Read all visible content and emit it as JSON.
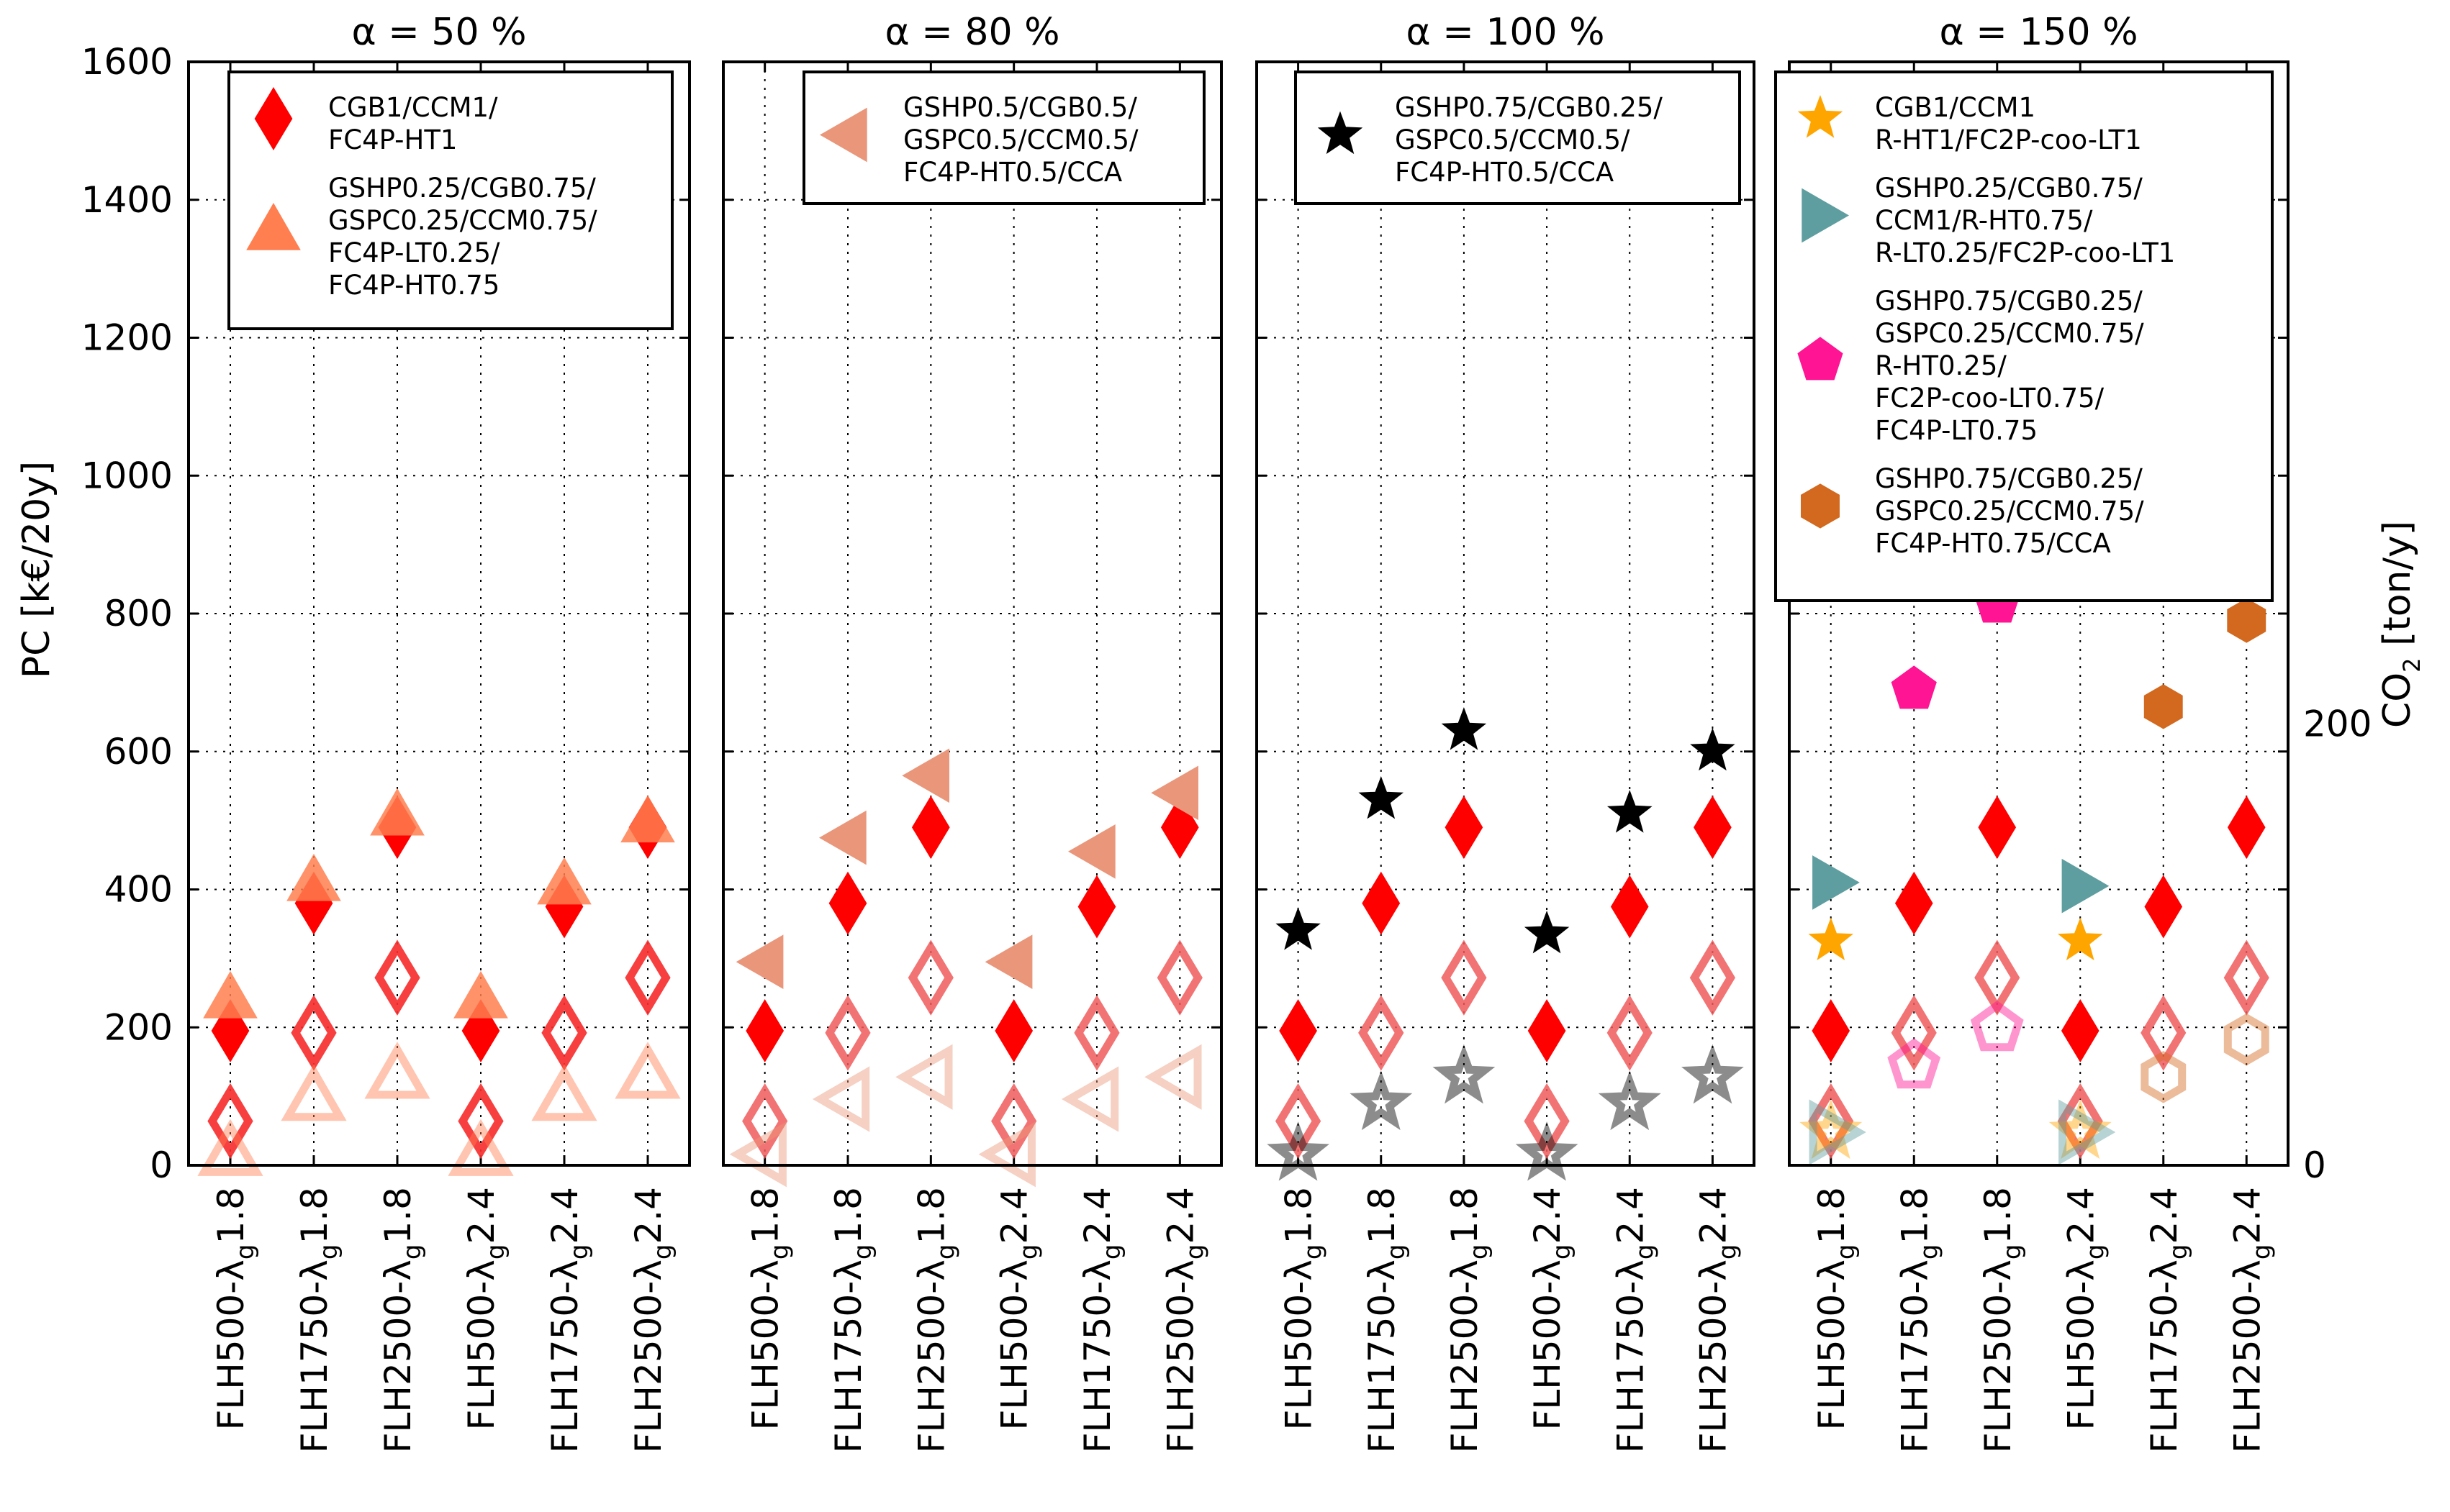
{
  "chart_data": {
    "type": "scatter",
    "ylabel": "PC [k€/20y]",
    "ylabel2_main": "CO",
    "ylabel2_sub": "2",
    "ylabel2_unit": "[ton/y]",
    "ylim": [
      0,
      1600
    ],
    "yticks": [
      0,
      200,
      400,
      600,
      800,
      1000,
      1200,
      1400,
      1600
    ],
    "y2lim": [
      0,
      500
    ],
    "y2ticks": [
      0,
      200
    ],
    "categories": [
      {
        "main": "FLH500-λ",
        "sub": "g",
        "tail": "1.8"
      },
      {
        "main": "FLH1750-λ",
        "sub": "g",
        "tail": "1.8"
      },
      {
        "main": "FLH2500-λ",
        "sub": "g",
        "tail": "1.8"
      },
      {
        "main": "FLH500-λ",
        "sub": "g",
        "tail": "2.4"
      },
      {
        "main": "FLH1750-λ",
        "sub": "g",
        "tail": "2.4"
      },
      {
        "main": "FLH2500-λ",
        "sub": "g",
        "tail": "2.4"
      }
    ],
    "reference": {
      "name": "CGB1/CCM1/FC4P-HT1",
      "color": "#ff0000",
      "pc": [
        195,
        380,
        490,
        195,
        375,
        490
      ],
      "co2": [
        20,
        60,
        85,
        20,
        60,
        85
      ]
    },
    "panels": [
      {
        "title": "α = 50 %",
        "series": [
          {
            "name_lines": [
              "CGB1/CCM1/",
              "FC4P-HT1"
            ],
            "marker": "diamond",
            "color": "#ff0000",
            "pc": [
              195,
              380,
              490,
              195,
              375,
              490
            ],
            "co2": [
              20,
              60,
              85,
              20,
              60,
              85
            ]
          },
          {
            "name_lines": [
              "GSHP0.25/CGB0.75/",
              "GSPC0.25/CCM0.75/",
              "FC4P-LT0.25/",
              "FC4P-HT0.75"
            ],
            "marker": "triangle-up",
            "color": "#ff7f50",
            "pc": [
              240,
              410,
              505,
              240,
              405,
              495
            ],
            "co2": [
              5,
              30,
              40,
              5,
              30,
              40
            ]
          }
        ]
      },
      {
        "title": "α = 80 %",
        "series": [
          {
            "name_lines": [
              "GSHP0.5/CGB0.5/",
              "GSPC0.5/CCM0.5/",
              "FC4P-HT0.5/CCA"
            ],
            "marker": "triangle-left",
            "color": "#e9967a",
            "pc": [
              295,
              475,
              565,
              295,
              455,
              540
            ],
            "co2": [
              5,
              30,
              40,
              5,
              30,
              40
            ]
          }
        ]
      },
      {
        "title": "α = 100 %",
        "series": [
          {
            "name_lines": [
              "GSHP0.75/CGB0.25/",
              "GSPC0.5/CCM0.5/",
              "FC4P-HT0.5/CCA"
            ],
            "marker": "star",
            "color": "#000000",
            "pc": [
              340,
              530,
              630,
              335,
              510,
              600
            ],
            "co2": [
              5,
              28,
              40,
              5,
              28,
              40
            ]
          }
        ]
      },
      {
        "title": "α = 150 %",
        "series": [
          {
            "name_lines": [
              "CGB1/CCM1",
              "R-HT1/FC2P-coo-LT1"
            ],
            "marker": "star",
            "color": "#ffa500",
            "pc": [
              325,
              0,
              0,
              325,
              0,
              0
            ],
            "co2": [
              15,
              0,
              0,
              15,
              0,
              0
            ]
          },
          {
            "name_lines": [
              "GSHP0.25/CGB0.75/",
              "CCM1/R-HT0.75/",
              "R-LT0.25/FC2P-coo-LT1"
            ],
            "marker": "triangle-right",
            "color": "#5f9ea0",
            "pc": [
              410,
              0,
              0,
              405,
              0,
              0
            ],
            "co2": [
              15,
              0,
              0,
              15,
              0,
              0
            ]
          },
          {
            "name_lines": [
              "GSHP0.75/CGB0.25/",
              "GSPC0.25/CCM0.75/",
              "R-HT0.25/",
              "FC2P-coo-LT0.75/",
              "FC4P-LT0.75"
            ],
            "marker": "pentagon",
            "color": "#ff1493",
            "pc": [
              0,
              690,
              815,
              0,
              0,
              0
            ],
            "co2": [
              0,
              45,
              62,
              0,
              0,
              0
            ]
          },
          {
            "name_lines": [
              "GSHP0.75/CGB0.25/",
              "GSPC0.25/CCM0.75/",
              "FC4P-HT0.75/CCA"
            ],
            "marker": "hexagon",
            "color": "#d2691e",
            "pc": [
              0,
              0,
              0,
              0,
              665,
              790
            ],
            "co2": [
              0,
              0,
              0,
              0,
              40,
              57
            ]
          }
        ]
      }
    ]
  }
}
